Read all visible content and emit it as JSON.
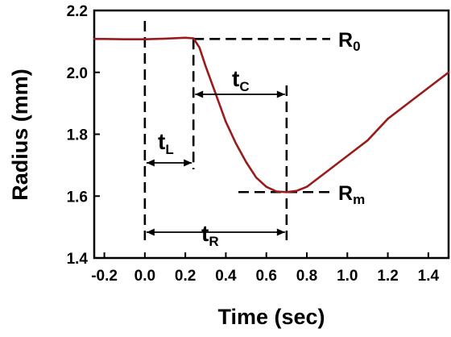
{
  "chart_data": {
    "type": "line",
    "xlabel": "Time (sec)",
    "ylabel": "Radius (mm)",
    "xlim": [
      -0.25,
      1.5
    ],
    "ylim": [
      1.4,
      2.2
    ],
    "x_ticks": [
      "-0.2",
      "0.0",
      "0.2",
      "0.4",
      "0.6",
      "0.8",
      "1.0",
      "1.2",
      "1.4"
    ],
    "x_tick_values": [
      -0.2,
      0.0,
      0.2,
      0.4,
      0.6,
      0.8,
      1.0,
      1.2,
      1.4
    ],
    "y_ticks": [
      "1.4",
      "1.6",
      "1.8",
      "2.0",
      "2.2"
    ],
    "y_tick_values": [
      1.4,
      1.6,
      1.8,
      2.0,
      2.2
    ],
    "grid": false,
    "line_color": "#9b1b1b",
    "series": [
      {
        "x": [
          -0.25,
          -0.2,
          -0.1,
          0.0,
          0.1,
          0.2,
          0.24,
          0.27,
          0.3,
          0.35,
          0.4,
          0.45,
          0.5,
          0.55,
          0.6,
          0.65,
          0.7,
          0.75,
          0.8,
          0.85,
          0.9,
          1.0,
          1.1,
          1.2,
          1.3,
          1.4,
          1.5
        ],
        "y": [
          2.108,
          2.108,
          2.107,
          2.107,
          2.109,
          2.112,
          2.11,
          2.08,
          2.02,
          1.93,
          1.84,
          1.77,
          1.71,
          1.66,
          1.63,
          1.615,
          1.613,
          1.617,
          1.63,
          1.655,
          1.68,
          1.73,
          1.78,
          1.85,
          1.9,
          1.95,
          2.0
        ]
      }
    ],
    "annotations": {
      "R0": {
        "label": "R",
        "sub": "0",
        "y": 2.108
      },
      "Rm": {
        "label": "R",
        "sub": "m",
        "y": 1.613
      },
      "tL": {
        "label": "t",
        "sub": "L"
      },
      "tC": {
        "label": "t",
        "sub": "C"
      },
      "tR": {
        "label": "t",
        "sub": "R"
      },
      "markers_x": {
        "start": 0.0,
        "left": 0.24,
        "min": 0.7
      }
    }
  }
}
